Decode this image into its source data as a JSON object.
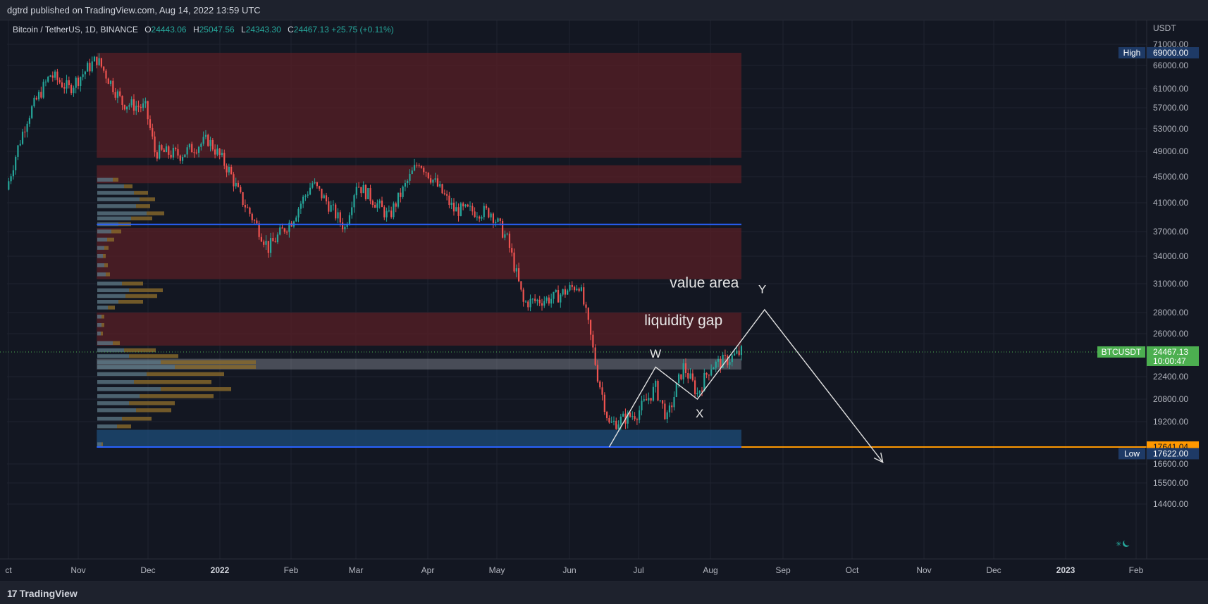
{
  "header": {
    "publisher_text": "dgtrd published on TradingView.com, Aug 14, 2022 13:59 UTC"
  },
  "legend": {
    "symbol": "Bitcoin / TetherUS, 1D, BINANCE",
    "open_key": "O",
    "open": "24443.06",
    "high_key": "H",
    "high": "25047.56",
    "low_key": "L",
    "low": "24343.30",
    "close_key": "C",
    "close": "24467.13",
    "change": "+25.75 (+0.11%)"
  },
  "footer": {
    "brand": "TradingView",
    "brand_mark": "17"
  },
  "colors": {
    "background": "#131722",
    "up": "#26a69a",
    "down": "#ef5350",
    "zone_red": "#5a1f26",
    "zone_blue": "#1e4d7a",
    "level_line_blue": "#2962ff",
    "low_line_orange": "#ff9800",
    "current_price_green": "#4caf50"
  },
  "chart_data": {
    "type": "candlestick",
    "title": "",
    "currency_label": "USDT",
    "y_ticks": [
      71000,
      66000,
      61000,
      57000,
      53000,
      49000,
      45000,
      41000,
      37000,
      34000,
      31000,
      28000,
      26000,
      22400,
      20800,
      19200,
      16600,
      15500,
      14400
    ],
    "y_tick_labels": [
      "71000.00",
      "66000.00",
      "61000.00",
      "57000.00",
      "53000.00",
      "49000.00",
      "45000.00",
      "41000.00",
      "37000.00",
      "34000.00",
      "31000.00",
      "28000.00",
      "26000.00",
      "22400.00",
      "20800.00",
      "19200.00",
      "16600.00",
      "15500.00",
      "14400.00"
    ],
    "x_labels": [
      "ct",
      "Nov",
      "Dec",
      "2022",
      "Feb",
      "Mar",
      "Apr",
      "May",
      "Jun",
      "Jul",
      "Aug",
      "Sep",
      "Oct",
      "Nov",
      "Dec",
      "2023",
      "Feb"
    ],
    "x_label_is_year": [
      false,
      false,
      false,
      true,
      false,
      false,
      false,
      false,
      false,
      false,
      false,
      false,
      false,
      false,
      false,
      true,
      false
    ],
    "price_path": [
      {
        "date": "2021-10-01",
        "close": 43000
      },
      {
        "date": "2021-10-10",
        "close": 55000
      },
      {
        "date": "2021-10-20",
        "close": 64000
      },
      {
        "date": "2021-10-28",
        "close": 61000
      },
      {
        "date": "2021-11-09",
        "close": 67500
      },
      {
        "date": "2021-11-20",
        "close": 58000
      },
      {
        "date": "2021-11-30",
        "close": 57000
      },
      {
        "date": "2021-12-04",
        "close": 49000
      },
      {
        "date": "2021-12-15",
        "close": 48500
      },
      {
        "date": "2021-12-27",
        "close": 51000
      },
      {
        "date": "2022-01-05",
        "close": 46000
      },
      {
        "date": "2022-01-10",
        "close": 41800
      },
      {
        "date": "2022-01-22",
        "close": 35000
      },
      {
        "date": "2022-02-01",
        "close": 38500
      },
      {
        "date": "2022-02-10",
        "close": 44000
      },
      {
        "date": "2022-02-24",
        "close": 37500
      },
      {
        "date": "2022-03-01",
        "close": 44000
      },
      {
        "date": "2022-03-15",
        "close": 39000
      },
      {
        "date": "2022-03-28",
        "close": 47500
      },
      {
        "date": "2022-04-12",
        "close": 40000
      },
      {
        "date": "2022-04-28",
        "close": 39700
      },
      {
        "date": "2022-05-05",
        "close": 36000
      },
      {
        "date": "2022-05-12",
        "close": 29000
      },
      {
        "date": "2022-05-25",
        "close": 29500
      },
      {
        "date": "2022-06-05",
        "close": 31000
      },
      {
        "date": "2022-06-13",
        "close": 22500
      },
      {
        "date": "2022-06-18",
        "close": 19000
      },
      {
        "date": "2022-06-30",
        "close": 19800
      },
      {
        "date": "2022-07-08",
        "close": 21600
      },
      {
        "date": "2022-07-13",
        "close": 19400
      },
      {
        "date": "2022-07-20",
        "close": 23200
      },
      {
        "date": "2022-07-26",
        "close": 21200
      },
      {
        "date": "2022-08-01",
        "close": 23300
      },
      {
        "date": "2022-08-08",
        "close": 23800
      },
      {
        "date": "2022-08-14",
        "close": 24467
      }
    ],
    "zones": [
      {
        "kind": "supply",
        "from_date": "2021-11-09",
        "to_date": "2022-08-14",
        "low": 48000,
        "high": 69000
      },
      {
        "kind": "supply",
        "from_date": "2021-11-09",
        "to_date": "2022-08-14",
        "low": 44000,
        "high": 46800
      },
      {
        "kind": "supply",
        "from_date": "2021-11-09",
        "to_date": "2022-08-14",
        "low": 31500,
        "high": 37500
      },
      {
        "kind": "liquidity_gap",
        "from_date": "2021-11-09",
        "to_date": "2022-08-14",
        "low": 25000,
        "high": 28000
      },
      {
        "kind": "value_area",
        "from_date": "2021-11-09",
        "to_date": "2022-08-14",
        "low": 23000,
        "high": 23900
      },
      {
        "kind": "demand",
        "from_date": "2021-11-09",
        "to_date": "2022-08-14",
        "low": 17641,
        "high": 18700
      }
    ],
    "horizontal_levels": [
      {
        "price": 38000,
        "kind": "blue"
      },
      {
        "price": 17641.04,
        "kind": "orange"
      }
    ],
    "wave_path": [
      {
        "date": "2022-06-18",
        "price": 17641
      },
      {
        "date": "2022-07-08",
        "price": 23200
      },
      {
        "date": "2022-07-26",
        "price": 20800
      },
      {
        "date": "2022-08-24",
        "price": 28300
      },
      {
        "date": "2022-10-14",
        "price": 16700
      }
    ],
    "annotations": [
      {
        "text": "value area",
        "date": "2022-07-29",
        "price": 30600,
        "size": 21
      },
      {
        "text": "Y",
        "date": "2022-08-23",
        "price": 30000,
        "size": 17
      },
      {
        "text": "liquidity gap",
        "date": "2022-07-20",
        "price": 26800,
        "size": 21
      },
      {
        "text": "W",
        "date": "2022-07-08",
        "price": 24000,
        "size": 17
      },
      {
        "text": "X",
        "date": "2022-07-27",
        "price": 19500,
        "size": 17
      }
    ],
    "price_labels": [
      {
        "label": "High",
        "value": "69000.00",
        "price": 69000,
        "kind": "high"
      },
      {
        "label": "BTCUSDT",
        "value": "24467.13",
        "sub": "10:00:47",
        "price": 24467.13,
        "kind": "current"
      },
      {
        "label": "",
        "value": "17641.04",
        "price": 17641.04,
        "kind": "orange"
      },
      {
        "label": "Low",
        "value": "17622.00",
        "price": 17622,
        "kind": "low"
      }
    ],
    "volume_profile": [
      {
        "price": 44500,
        "up": 22,
        "down": 8
      },
      {
        "price": 43500,
        "up": 38,
        "down": 12
      },
      {
        "price": 42500,
        "up": 52,
        "down": 20
      },
      {
        "price": 41500,
        "up": 60,
        "down": 22
      },
      {
        "price": 40500,
        "up": 55,
        "down": 20
      },
      {
        "price": 39500,
        "up": 70,
        "down": 25
      },
      {
        "price": 38800,
        "up": 48,
        "down": 30
      },
      {
        "price": 38000,
        "up": 30,
        "down": 18
      },
      {
        "price": 37000,
        "up": 20,
        "down": 14
      },
      {
        "price": 36000,
        "up": 14,
        "down": 10
      },
      {
        "price": 35000,
        "up": 10,
        "down": 6
      },
      {
        "price": 34000,
        "up": 8,
        "down": 4
      },
      {
        "price": 33000,
        "up": 10,
        "down": 5
      },
      {
        "price": 32000,
        "up": 12,
        "down": 6
      },
      {
        "price": 31000,
        "up": 35,
        "down": 30
      },
      {
        "price": 30300,
        "up": 45,
        "down": 48
      },
      {
        "price": 29700,
        "up": 40,
        "down": 45
      },
      {
        "price": 29100,
        "up": 30,
        "down": 35
      },
      {
        "price": 28500,
        "up": 15,
        "down": 10
      },
      {
        "price": 27600,
        "up": 6,
        "down": 4
      },
      {
        "price": 26800,
        "up": 6,
        "down": 4
      },
      {
        "price": 26000,
        "up": 5,
        "down": 3
      },
      {
        "price": 25200,
        "up": 22,
        "down": 10
      },
      {
        "price": 24600,
        "up": 38,
        "down": 45
      },
      {
        "price": 24100,
        "up": 45,
        "down": 70
      },
      {
        "price": 23600,
        "up": 90,
        "down": 135
      },
      {
        "price": 23200,
        "up": 110,
        "down": 115
      },
      {
        "price": 22600,
        "up": 70,
        "down": 110
      },
      {
        "price": 22000,
        "up": 52,
        "down": 110
      },
      {
        "price": 21500,
        "up": 90,
        "down": 100
      },
      {
        "price": 21000,
        "up": 60,
        "down": 105
      },
      {
        "price": 20500,
        "up": 45,
        "down": 65
      },
      {
        "price": 20000,
        "up": 55,
        "down": 50
      },
      {
        "price": 19400,
        "up": 35,
        "down": 42
      },
      {
        "price": 18900,
        "up": 28,
        "down": 20
      },
      {
        "price": 17800,
        "up": 6,
        "down": 2
      }
    ]
  }
}
